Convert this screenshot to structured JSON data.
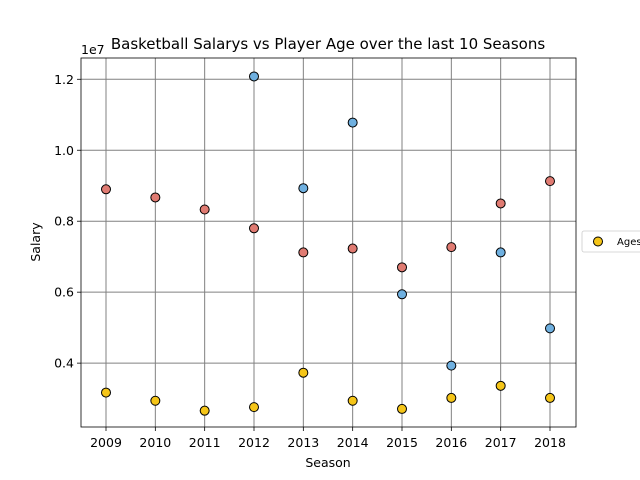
{
  "chart_data": {
    "type": "scatter",
    "title": "Basketball Salarys vs Player Age over the last 10 Seasons",
    "xlabel": "Season",
    "ylabel": "Salary",
    "y_offset_label": "1e7",
    "x": [
      2009,
      2010,
      2011,
      2012,
      2013,
      2014,
      2015,
      2016,
      2017,
      2018
    ],
    "x_ticks": [
      "2009",
      "2010",
      "2011",
      "2012",
      "2013",
      "2014",
      "2015",
      "2016",
      "2017",
      "2018"
    ],
    "y_ticks": [
      0.4,
      0.6,
      0.8,
      1.0,
      1.2
    ],
    "y_tick_labels": [
      "0.4",
      "0.6",
      "0.8",
      "1.0",
      "1.2"
    ],
    "ylim": [
      0.22,
      1.26
    ],
    "y_scale": 10000000,
    "grid": true,
    "legend_position": "right, partially cut off",
    "series": [
      {
        "name": "Ages",
        "color": "#f5c518",
        "points": [
          [
            2009,
            0.317
          ],
          [
            2010,
            0.294
          ],
          [
            2011,
            0.266
          ],
          [
            2012,
            0.276
          ],
          [
            2013,
            0.373
          ],
          [
            2014,
            0.294
          ],
          [
            2015,
            0.271
          ],
          [
            2016,
            0.302
          ],
          [
            2017,
            0.336
          ],
          [
            2018,
            0.302
          ]
        ]
      },
      {
        "color": "#e07b72",
        "points": [
          [
            2009,
            0.89
          ],
          [
            2010,
            0.867
          ],
          [
            2011,
            0.833
          ],
          [
            2012,
            0.78
          ],
          [
            2013,
            0.712
          ],
          [
            2014,
            0.723
          ],
          [
            2015,
            0.67
          ],
          [
            2016,
            0.727
          ],
          [
            2017,
            0.85
          ],
          [
            2018,
            0.913
          ]
        ]
      },
      {
        "color": "#6fb0e0",
        "points": [
          [
            2012,
            1.208
          ],
          [
            2013,
            0.893
          ],
          [
            2014,
            1.078
          ],
          [
            2015,
            0.594
          ],
          [
            2016,
            0.393
          ],
          [
            2017,
            0.712
          ],
          [
            2018,
            0.498
          ]
        ]
      }
    ]
  }
}
